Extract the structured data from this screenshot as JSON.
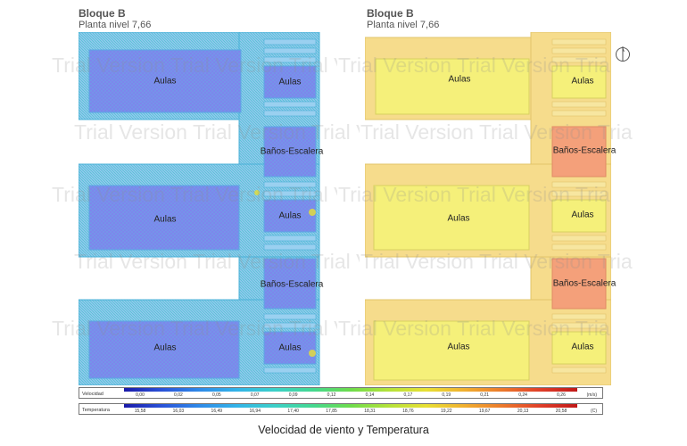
{
  "panels": [
    {
      "title": "Bloque B",
      "subtitle": "Planta nivel 7,66",
      "rooms": [
        "Aulas",
        "Aulas",
        "Baños-Escalera",
        "Aulas",
        "Aulas",
        "Baños-Escalera",
        "Aulas",
        "Aulas"
      ]
    },
    {
      "title": "Bloque B",
      "subtitle": "Planta nivel 7,66",
      "rooms": [
        "Aulas",
        "Aulas",
        "Baños-Escalera",
        "Aulas",
        "Aulas",
        "Baños-Escalera",
        "Aulas",
        "Aulas"
      ]
    }
  ],
  "watermark": "Trial Version",
  "legend": {
    "velocity": {
      "label": "Velocidad",
      "ticks": [
        "0,00",
        "0,02",
        "0,05",
        "0,07",
        "0,09",
        "0,12",
        "0,14",
        "0,17",
        "0,19",
        "0,21",
        "0,24",
        "0,26"
      ],
      "unit": "(m/s)"
    },
    "temperature": {
      "label": "Temperatura",
      "ticks": [
        "15,58",
        "16,03",
        "16,49",
        "16,94",
        "17,40",
        "17,85",
        "18,31",
        "18,76",
        "19,22",
        "19,67",
        "20,13",
        "20,58"
      ],
      "unit": "(C)"
    },
    "scale_colors": [
      "#1a1aa8",
      "#2a52d8",
      "#2f8ae8",
      "#33b4e8",
      "#3cd0c8",
      "#44d890",
      "#6edc4c",
      "#b4e23a",
      "#e8e034",
      "#f0b030",
      "#ec7a2c",
      "#e0402a",
      "#c01818"
    ]
  },
  "caption": "Velocidad de viento y Temperatura",
  "colors": {
    "velocity_room": "#7b80ea",
    "velocity_corridor": "#8ec7ee",
    "velocity_edge": "#33c6d8",
    "temperature_room": "#f5f07a",
    "temperature_corridor": "#f6dc8c",
    "temperature_stair": "#f4a07a"
  }
}
